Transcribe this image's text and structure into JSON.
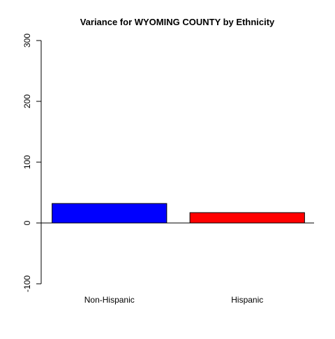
{
  "chart_data": {
    "type": "bar",
    "title": "Variance for WYOMING COUNTY by Ethnicity",
    "xlabel": "",
    "ylabel": "",
    "categories": [
      "Non-Hispanic",
      "Hispanic"
    ],
    "values": [
      32,
      17
    ],
    "colors": [
      "#0000ff",
      "#ff0000"
    ],
    "ylim": [
      -100,
      300
    ],
    "yticks": [
      -100,
      0,
      100,
      200,
      300
    ],
    "grid": false,
    "legend": "none"
  }
}
